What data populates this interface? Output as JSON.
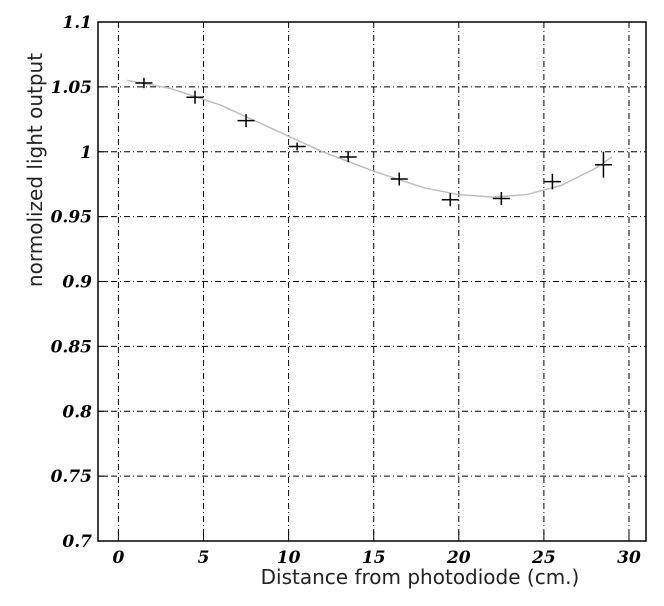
{
  "chart_data": {
    "type": "scatter",
    "xlabel": "Distance from photodiode (cm.)",
    "ylabel": "normolized light output",
    "xlim": [
      -1.2,
      31
    ],
    "ylim": [
      0.7,
      1.1
    ],
    "xticks": [
      0,
      5,
      10,
      15,
      20,
      25,
      30
    ],
    "yticks": [
      0.7,
      0.75,
      0.8,
      0.85,
      0.9,
      0.95,
      1,
      1.05,
      1.1
    ],
    "grid": true,
    "series": [
      {
        "color": "#000000",
        "x": [
          1.5,
          4.5,
          7.5,
          10.5,
          13.5,
          16.5,
          19.5,
          22.5,
          25.5,
          28.5
        ],
        "values": [
          1.053,
          1.042,
          1.024,
          1.004,
          0.996,
          0.979,
          0.963,
          0.964,
          0.977,
          0.99
        ],
        "yerr": [
          0.004,
          0.005,
          0.005,
          0.003,
          0.004,
          0.005,
          0.005,
          0.005,
          0.006,
          0.01
        ],
        "xerr": [
          1,
          1,
          1,
          1,
          1,
          1,
          1,
          1,
          1,
          1
        ]
      }
    ],
    "fit": {
      "color": "#bdbdbd",
      "x": [
        0.5,
        3,
        6,
        9,
        12,
        15,
        18,
        20,
        22,
        24,
        26,
        28,
        29
      ],
      "values": [
        1.055,
        1.049,
        1.036,
        1.018,
        1.0,
        0.985,
        0.972,
        0.967,
        0.965,
        0.967,
        0.974,
        0.987,
        0.996
      ]
    }
  }
}
